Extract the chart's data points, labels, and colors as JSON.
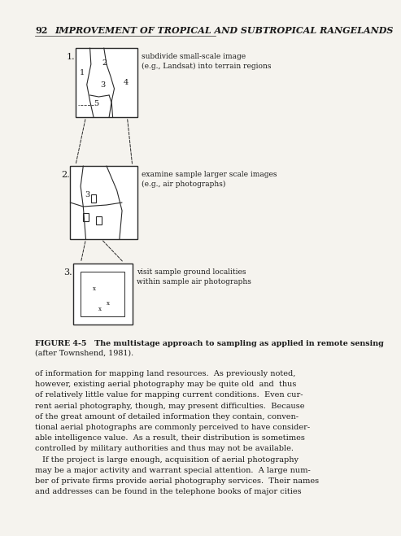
{
  "page_number": "92",
  "header_title": "IMPROVEMENT OF TROPICAL AND SUBTROPICAL RANGELANDS",
  "figure_caption": "FIGURE 4-5   The multistage approach to sampling as applied in remote sensing\n(after Townshend, 1981).",
  "step1_label": "1.",
  "step1_annotation": "subdivide small-scale image\n(e.g., Landsat) into terrain regions",
  "step2_label": "2.",
  "step2_annotation": "examine sample larger scale images\n(e.g., air photographs)",
  "step3_label": "3.",
  "step3_annotation": "visit sample ground localities\nwithin sample air photographs",
  "body_text": "of information for mapping land resources.  As previously noted,\nhowever, existing aerial photography may be quite old  and  thus\nof relatively little value for mapping current conditions.  Even cur-\nrent aerial photography, though, may present difficulties.  Because\nof the great amount of detailed information they contain, conven-\ntional aerial photographs are commonly perceived to have consider-\nable intelligence value.  As a result, their distribution is sometimes\ncontrolled by military authorities and thus may not be available.\n    If the project is large enough, acquisition of aerial photography\nmay be a major activity and warrant special attention.  A large num-\nber of private firms provide aerial photography services.  Their names\nand addresses can be found in the telephone books of major cities",
  "bg_color": "#f5f3ee",
  "text_color": "#1a1a1a",
  "line_color": "#2a2a2a"
}
